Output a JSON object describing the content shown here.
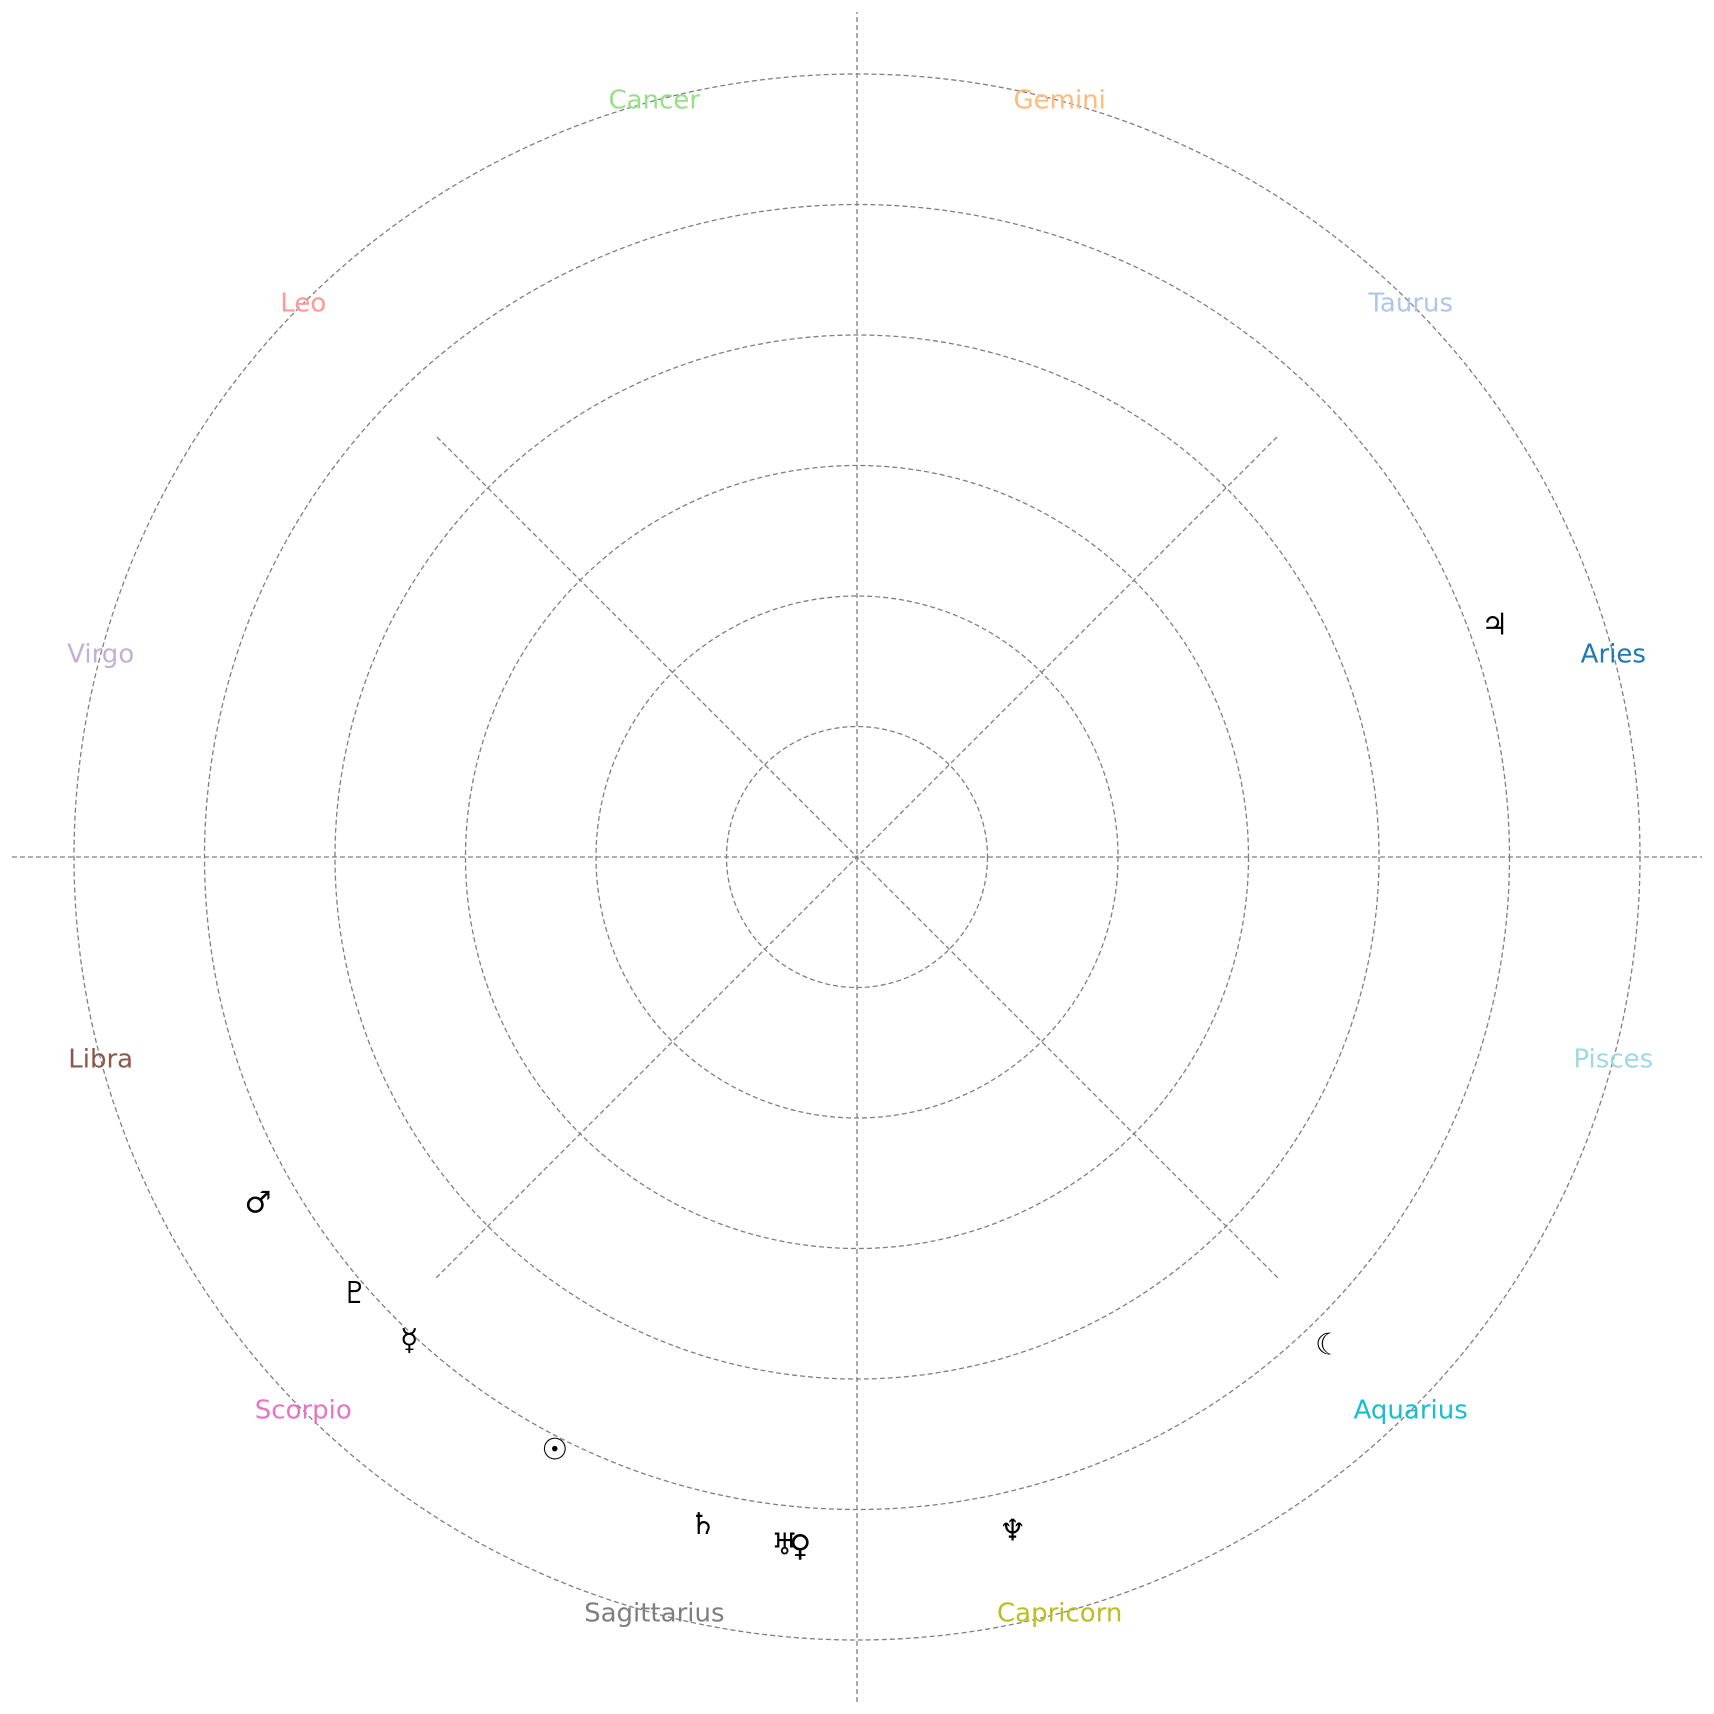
{
  "chart_data": {
    "type": "scatter",
    "projection": "polar",
    "theta_unit": "degrees",
    "r_grid": [
      1,
      2,
      3,
      4,
      5,
      6
    ],
    "r_max": 6,
    "angular_axes_deg": [
      0,
      45,
      90,
      135,
      180,
      225,
      270,
      315
    ],
    "grid": true,
    "signs": [
      {
        "name": "Aries",
        "angle": 15,
        "color": "#1f77b4"
      },
      {
        "name": "Taurus",
        "angle": 45,
        "color": "#aec7e8"
      },
      {
        "name": "Gemini",
        "angle": 75,
        "color": "#ffbb78"
      },
      {
        "name": "Cancer",
        "angle": 105,
        "color": "#98df8a"
      },
      {
        "name": "Leo",
        "angle": 135,
        "color": "#ff9896"
      },
      {
        "name": "Virgo",
        "angle": 165,
        "color": "#c5b0d5"
      },
      {
        "name": "Libra",
        "angle": 195,
        "color": "#8c564b"
      },
      {
        "name": "Scorpio",
        "angle": 225,
        "color": "#e377c2"
      },
      {
        "name": "Sagittarius",
        "angle": 255,
        "color": "#7f7f7f"
      },
      {
        "name": "Capricorn",
        "angle": 285,
        "color": "#bcbd22"
      },
      {
        "name": "Aquarius",
        "angle": 315,
        "color": "#17becf"
      },
      {
        "name": "Pisces",
        "angle": 345,
        "color": "#9edae5"
      }
    ],
    "planets": [
      {
        "symbol": "♃",
        "angle": 20.0,
        "r": 5.2
      },
      {
        "symbol": "♂",
        "angle": 210.0,
        "r": 5.3
      },
      {
        "symbol": "♇",
        "angle": 221.0,
        "r": 5.1
      },
      {
        "symbol": "♀",
        "angle": 265.3,
        "r": 5.3
      },
      {
        "symbol": "☿",
        "angle": 227.2,
        "r": 5.05
      },
      {
        "symbol": "☉",
        "angle": 243.0,
        "r": 5.1
      },
      {
        "symbol": "♄",
        "angle": 257.0,
        "r": 5.25
      },
      {
        "symbol": "♅",
        "angle": 264.0,
        "r": 5.3
      },
      {
        "symbol": "♆",
        "angle": 283.0,
        "r": 5.3
      },
      {
        "symbol": "☾",
        "angle": 314.0,
        "r": 5.2
      }
    ]
  }
}
